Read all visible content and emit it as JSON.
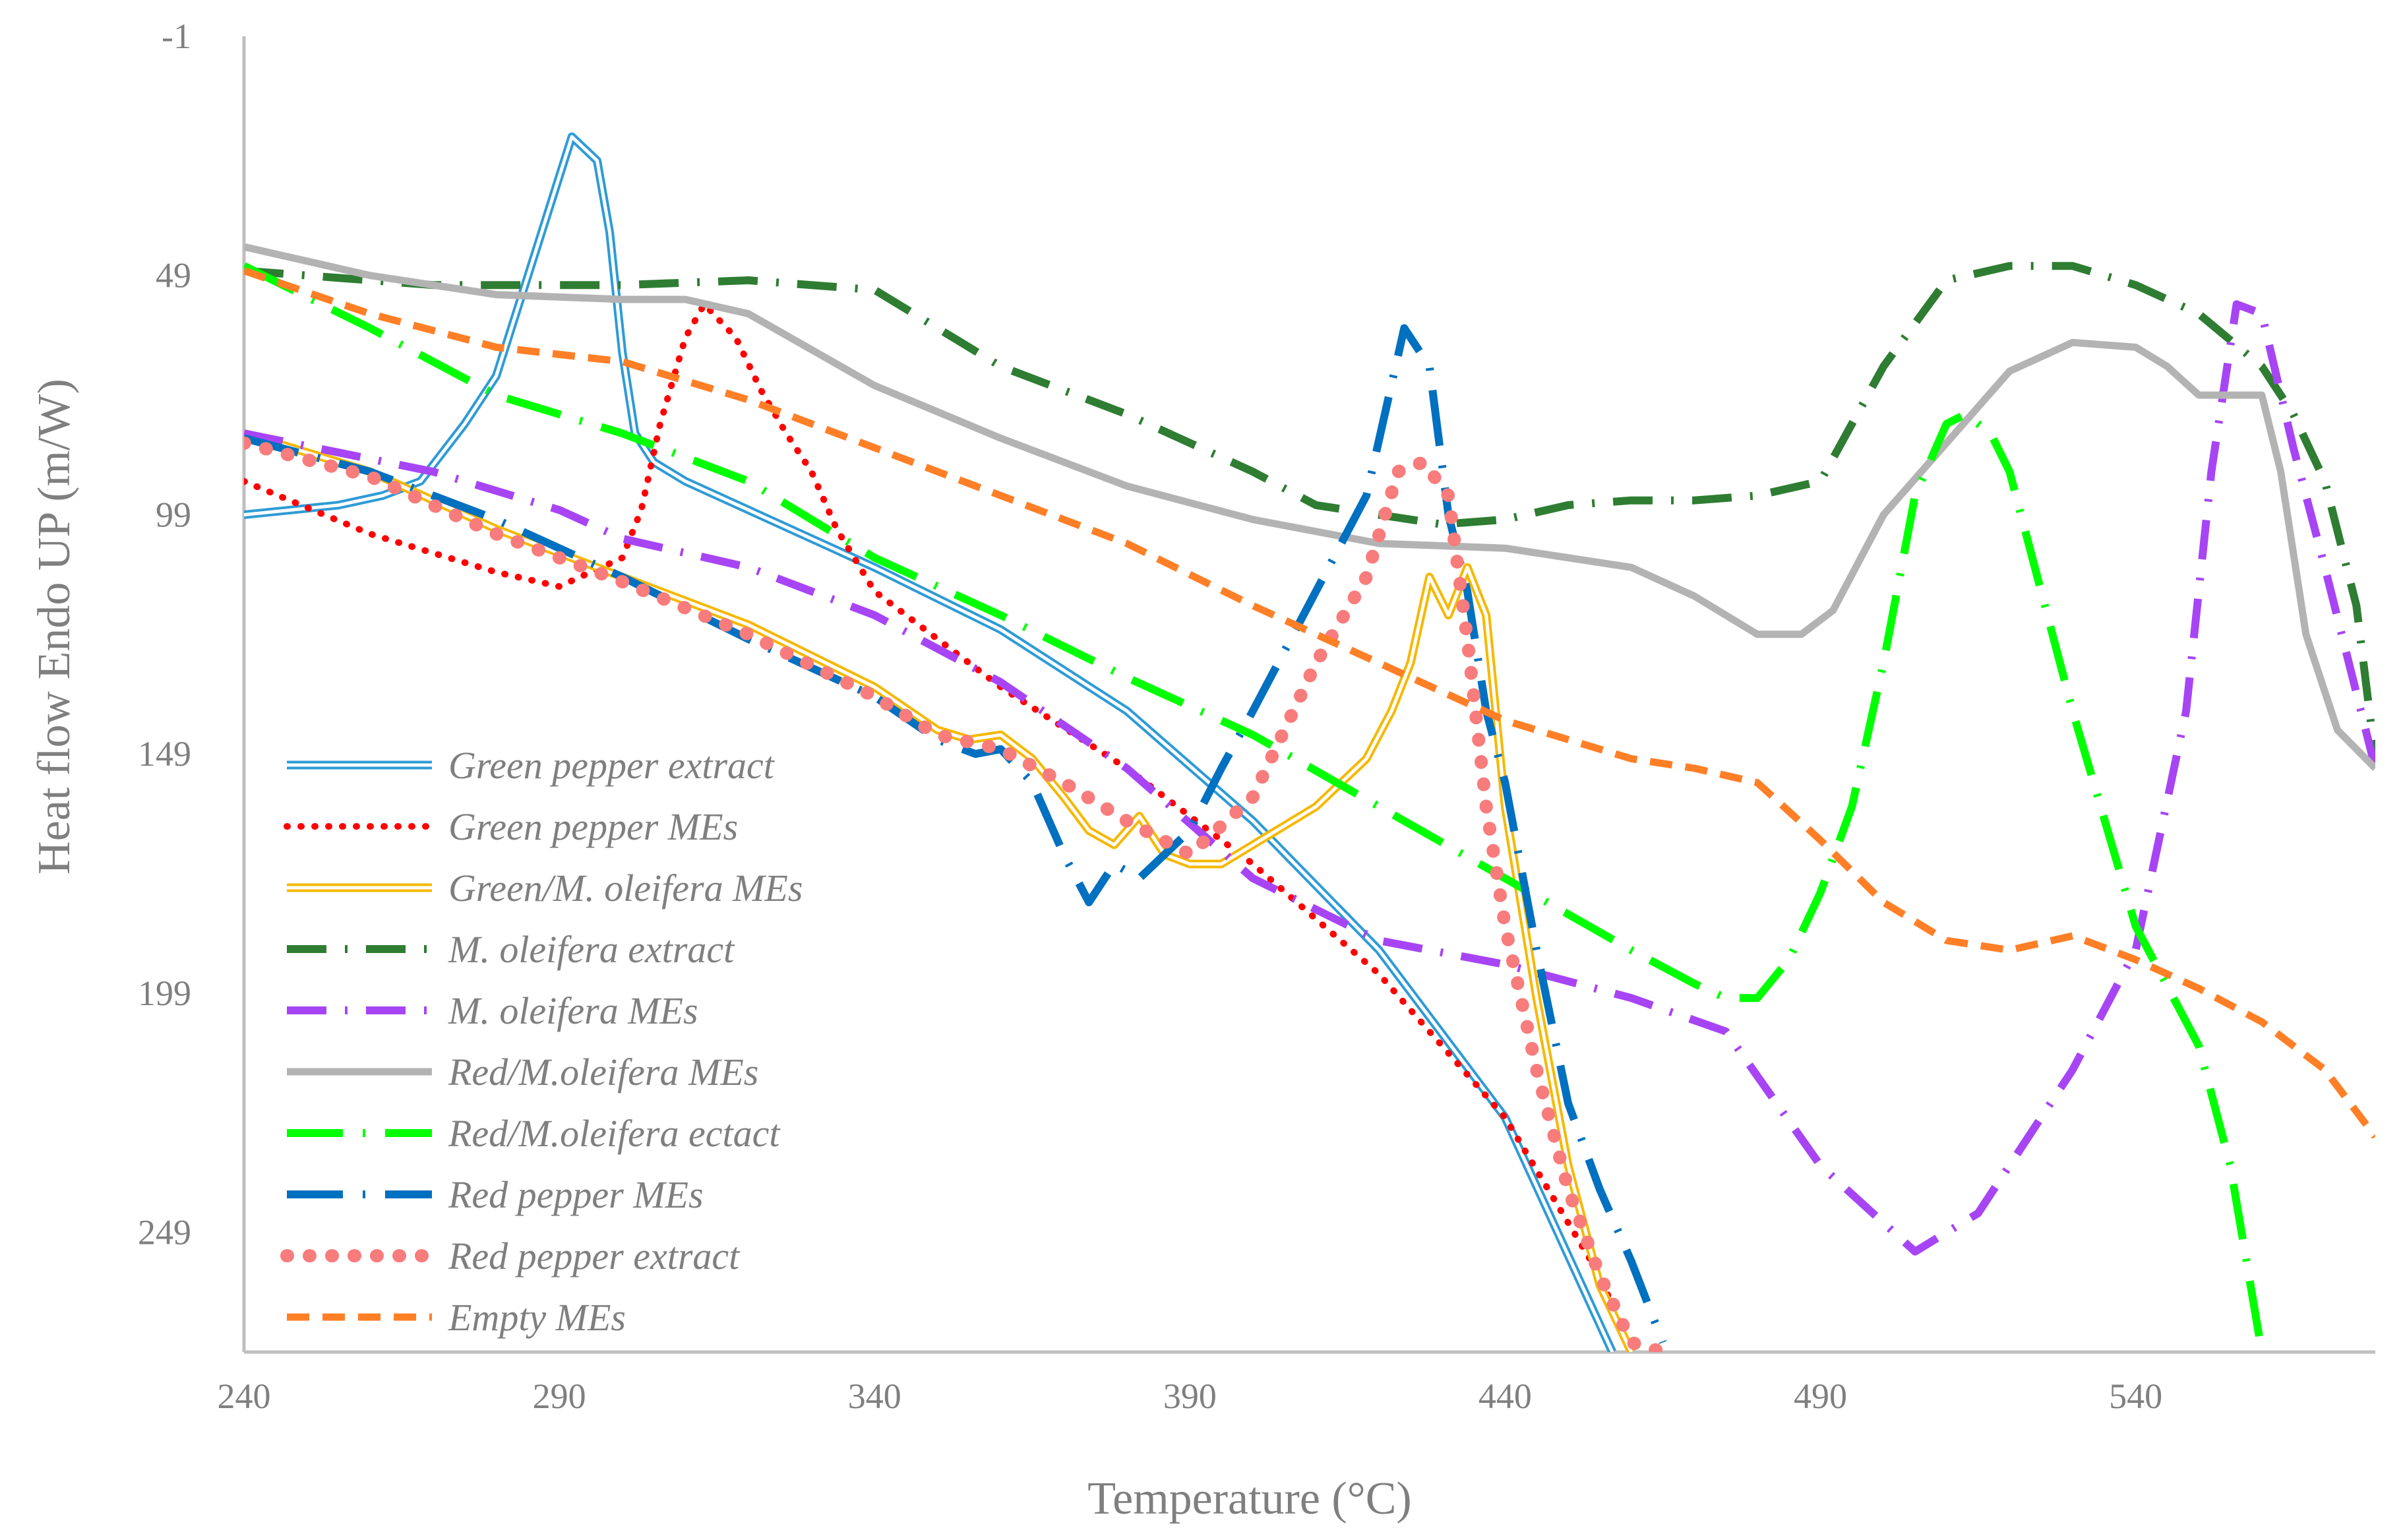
{
  "chart_data": {
    "type": "line",
    "title": "",
    "xlabel": "Temperature (°C)",
    "ylabel": "Heat flow Endo UP (m/W)",
    "xlim": [
      240,
      578
    ],
    "ylim": [
      -1,
      274
    ],
    "y_reversed": true,
    "xticks": [
      240,
      290,
      340,
      390,
      440,
      490,
      540
    ],
    "yticks": [
      -1,
      49,
      99,
      149,
      199,
      249
    ],
    "grid": false,
    "legend_position": "bottom-left",
    "series": [
      {
        "name": "Green pepper extract",
        "color": "#2e9bd6",
        "style": "double",
        "x": [
          240,
          255,
          262,
          268,
          275,
          280,
          286,
          292,
          296,
          298,
          300,
          302,
          305,
          310,
          320,
          340,
          360,
          380,
          400,
          420,
          440,
          457
        ],
        "y": [
          99,
          97,
          95,
          92,
          80,
          70,
          45,
          20,
          25,
          40,
          65,
          82,
          88,
          92,
          98,
          110,
          123,
          140,
          163,
          190,
          225,
          274
        ]
      },
      {
        "name": "Green pepper MEs",
        "color": "#ff0000",
        "style": "dotted",
        "x": [
          240,
          260,
          280,
          290,
          300,
          303,
          306,
          310,
          313,
          318,
          322,
          326,
          330,
          334,
          340,
          360,
          380,
          400,
          420,
          440,
          455,
          460
        ],
        "y": [
          92,
          103,
          111,
          114,
          108,
          98,
          80,
          62,
          55,
          62,
          73,
          82,
          90,
          102,
          115,
          135,
          152,
          172,
          195,
          225,
          258,
          274
        ]
      },
      {
        "name": "Green/M. oleifera MEs",
        "color": "#f5b800",
        "style": "double",
        "x": [
          240,
          260,
          280,
          300,
          320,
          340,
          350,
          355,
          360,
          365,
          370,
          374,
          378,
          382,
          386,
          390,
          395,
          400,
          410,
          418,
          422,
          425,
          428,
          431,
          434,
          437,
          440,
          445,
          450,
          455,
          460
        ],
        "y": [
          82,
          90,
          102,
          112,
          122,
          135,
          144,
          146,
          145,
          150,
          158,
          165,
          168,
          162,
          170,
          172,
          172,
          168,
          160,
          150,
          140,
          130,
          112,
          120,
          110,
          120,
          160,
          200,
          235,
          260,
          274
        ]
      },
      {
        "name": "M. oleifera extract",
        "color": "#2e7d32",
        "style": "dashdot",
        "x": [
          240,
          270,
          300,
          320,
          340,
          360,
          380,
          400,
          410,
          420,
          430,
          440,
          450,
          460,
          470,
          480,
          490,
          500,
          510,
          520,
          530,
          540,
          550,
          560,
          565,
          570,
          575,
          578
        ],
        "y": [
          48,
          51,
          51,
          50,
          52,
          68,
          78,
          90,
          97,
          99,
          101,
          100,
          97,
          96,
          96,
          95,
          92,
          68,
          50,
          47,
          47,
          51,
          57,
          68,
          78,
          92,
          118,
          150
        ]
      },
      {
        "name": "M. oleifera MEs",
        "color": "#a745f5",
        "style": "dashdot",
        "x": [
          240,
          270,
          290,
          300,
          320,
          340,
          360,
          380,
          400,
          420,
          440,
          460,
          475,
          490,
          505,
          515,
          530,
          540,
          548,
          552,
          556,
          560,
          565,
          570,
          578
        ],
        "y": [
          82,
          90,
          98,
          104,
          110,
          120,
          134,
          152,
          175,
          188,
          193,
          200,
          207,
          235,
          253,
          245,
          215,
          190,
          140,
          90,
          55,
          57,
          85,
          110,
          152
        ]
      },
      {
        "name": "Red/M.oleifera MEs",
        "color": "#b3b3b3",
        "style": "solid",
        "x": [
          240,
          260,
          280,
          300,
          310,
          320,
          340,
          360,
          380,
          400,
          420,
          440,
          460,
          470,
          480,
          487,
          492,
          500,
          510,
          520,
          530,
          540,
          545,
          550,
          555,
          560,
          563,
          567,
          572,
          578
        ],
        "y": [
          43,
          49,
          53,
          54,
          54,
          57,
          72,
          83,
          93,
          100,
          105,
          106,
          110,
          116,
          124,
          124,
          119,
          99,
          84,
          69,
          63,
          64,
          68,
          74,
          74,
          74,
          90,
          124,
          144,
          152
        ]
      },
      {
        "name": "Red/M.oleifera ectact",
        "color": "#00ff00",
        "style": "longdash",
        "x": [
          240,
          260,
          280,
          300,
          320,
          340,
          360,
          380,
          400,
          420,
          440,
          460,
          470,
          475,
          480,
          485,
          490,
          495,
          500,
          505,
          510,
          513,
          517,
          520,
          525,
          530,
          540,
          550,
          555,
          560
        ],
        "y": [
          47,
          60,
          74,
          82,
          92,
          108,
          120,
          133,
          145,
          160,
          175,
          190,
          197,
          200,
          200,
          192,
          178,
          160,
          130,
          95,
          80,
          78,
          82,
          90,
          115,
          140,
          185,
          210,
          235,
          274
        ]
      },
      {
        "name": "Red pepper MEs",
        "color": "#0070c0",
        "style": "longdash",
        "x": [
          240,
          260,
          280,
          300,
          320,
          340,
          350,
          356,
          360,
          365,
          370,
          374,
          378,
          382,
          386,
          390,
          395,
          400,
          410,
          418,
          424,
          428,
          431,
          434,
          437,
          440,
          445,
          450,
          455,
          460,
          465
        ],
        "y": [
          83,
          90,
          100,
          112,
          125,
          137,
          146,
          149,
          148,
          155,
          170,
          180,
          172,
          175,
          170,
          165,
          152,
          140,
          115,
          95,
          60,
          68,
          99,
          115,
          140,
          155,
          190,
          222,
          240,
          255,
          272
        ]
      },
      {
        "name": "Red pepper extract",
        "color": "#f87c7c",
        "style": "dots",
        "x": [
          240,
          260,
          280,
          300,
          320,
          340,
          350,
          360,
          370,
          380,
          390,
          400,
          410,
          418,
          423,
          427,
          431,
          434,
          437,
          440,
          445,
          450,
          455,
          460,
          465
        ],
        "y": [
          84,
          91,
          103,
          113,
          124,
          137,
          145,
          148,
          155,
          163,
          170,
          158,
          130,
          112,
          90,
          88,
          95,
          125,
          160,
          185,
          215,
          240,
          258,
          272,
          274
        ]
      },
      {
        "name": "Empty MEs",
        "color": "#ff7f27",
        "style": "dashed",
        "x": [
          240,
          260,
          280,
          300,
          320,
          340,
          360,
          380,
          400,
          420,
          440,
          460,
          470,
          480,
          490,
          500,
          510,
          520,
          530,
          540,
          550,
          560,
          570,
          578
        ],
        "y": [
          48,
          57,
          64,
          67,
          75,
          85,
          95,
          105,
          118,
          130,
          142,
          150,
          152,
          155,
          167,
          180,
          188,
          190,
          187,
          192,
          198,
          205,
          215,
          229
        ]
      }
    ]
  }
}
